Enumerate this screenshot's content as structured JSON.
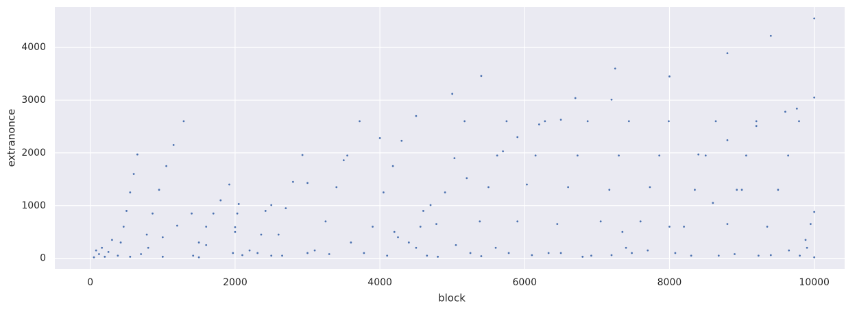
{
  "chart_data": {
    "type": "scatter",
    "xlabel": "block",
    "ylabel": "extranonce",
    "color": "#4c72b0",
    "xlim": [
      -490,
      10420
    ],
    "ylim": [
      -200,
      4770
    ],
    "xticks": [
      0,
      2000,
      4000,
      6000,
      8000,
      10000
    ],
    "yticks": [
      0,
      1000,
      2000,
      3000,
      4000
    ],
    "grid": true,
    "x": [
      380,
      420,
      460,
      500,
      550,
      600,
      650,
      700,
      780,
      860,
      950,
      1050,
      1150,
      1290,
      1420,
      1500,
      1600,
      1700,
      1800,
      1920,
      1970,
      2000,
      2030,
      2050,
      2310,
      2360,
      2420,
      2500,
      2600,
      2700,
      2800,
      2930,
      3100,
      3250,
      3400,
      3550,
      3720,
      3780,
      3900,
      4050,
      4180,
      4300,
      4500,
      4560,
      4600,
      4650,
      4780,
      4900,
      5030,
      5170,
      5250,
      5380,
      5500,
      5620,
      5750,
      5780,
      5900,
      6030,
      6150,
      6280,
      6330,
      6450,
      6600,
      6730,
      6870,
      6920,
      7050,
      7170,
      7300,
      7440,
      7480,
      7600,
      7730,
      7860,
      7990,
      8080,
      8200,
      8350,
      8500,
      8640,
      8680,
      8800,
      8930,
      9060,
      9200,
      9230,
      9350,
      9500,
      9640,
      9790,
      9800,
      9880,
      9950,
      10000,
      1600,
      2000,
      2500,
      3000,
      3500,
      4000,
      4500,
      5000,
      5400,
      4200,
      4700,
      5200,
      5700,
      6200,
      6700,
      7250,
      5900,
      6500,
      7200,
      8000,
      8800,
      9400,
      10000,
      8400,
      8800,
      9200,
      9600,
      10000,
      800,
      1000,
      1200,
      1400,
      7400,
      8000,
      8600,
      9000,
      50,
      80,
      120,
      160,
      200,
      250,
      300,
      1000,
      1500,
      2100,
      2200,
      2650,
      3000,
      3300,
      3600,
      4100,
      4400,
      4800,
      5400,
      5600,
      6100,
      6500,
      6800,
      7200,
      7700,
      8300,
      8900,
      9400,
      9650,
      9900,
      10000,
      550,
      4250,
      5050,
      7350,
      9760
    ],
    "values": [
      50,
      300,
      600,
      900,
      1250,
      1600,
      1970,
      80,
      450,
      850,
      1300,
      1750,
      2150,
      2600,
      50,
      300,
      600,
      850,
      1100,
      1400,
      100,
      500,
      850,
      1030,
      100,
      450,
      900,
      50,
      450,
      950,
      1450,
      1960,
      150,
      700,
      1350,
      1950,
      2600,
      100,
      600,
      1250,
      1750,
      2230,
      200,
      600,
      900,
      50,
      650,
      1250,
      1900,
      2600,
      100,
      700,
      1350,
      1950,
      2600,
      100,
      700,
      1400,
      1950,
      2600,
      100,
      650,
      1350,
      1950,
      2600,
      50,
      700,
      1300,
      1950,
      2600,
      100,
      700,
      1350,
      1950,
      2600,
      100,
      600,
      1300,
      1950,
      2600,
      50,
      650,
      1300,
      1950,
      2600,
      50,
      600,
      1300,
      1950,
      2600,
      50,
      350,
      650,
      880,
      250,
      590,
      1010,
      1430,
      1860,
      2280,
      2700,
      3120,
      3460,
      500,
      1010,
      1520,
      2030,
      2540,
      3040,
      3600,
      2300,
      2630,
      3010,
      3450,
      3890,
      4220,
      4550,
      1970,
      2240,
      2510,
      2780,
      3050,
      200,
      400,
      620,
      850,
      200,
      600,
      1050,
      1300,
      20,
      150,
      80,
      200,
      30,
      120,
      350,
      30,
      20,
      60,
      150,
      50,
      100,
      80,
      300,
      50,
      300,
      30,
      40,
      200,
      60,
      100,
      30,
      60,
      150,
      50,
      80,
      60,
      150,
      200,
      20,
      30,
      400,
      250,
      500,
      2840
    ]
  }
}
